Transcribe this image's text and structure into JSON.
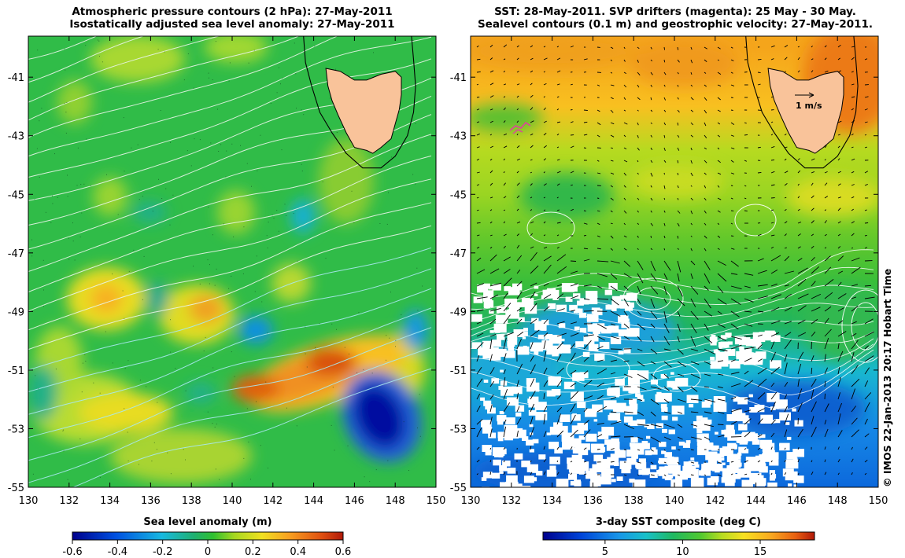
{
  "left_panel": {
    "title_line1": "Atmospheric pressure contours (2 hPa): 27-May-2011",
    "title_line2": "Isostatically adjusted sea level anomaly: 27-May-2011",
    "colorbar_label": "Sea level anomaly (m)",
    "colorbar_ticks": [
      "-0.6",
      "-0.4",
      "-0.2",
      "0",
      "0.2",
      "0.4",
      "0.6"
    ]
  },
  "right_panel": {
    "title_line1": "SST: 28-May-2011. SVP drifters (magenta): 25 May - 30 May.",
    "title_line2": "Sealevel contours (0.1 m) and geostrophic velocity: 27-May-2011.",
    "colorbar_label": "3-day SST composite (deg C)",
    "colorbar_ticks": [
      "5",
      "10",
      "15"
    ],
    "velocity_scale_label": "1 m/s"
  },
  "copyright": "© IMOS 22-Jan-2013 20:17 Hobart Time",
  "colors": {
    "land": "#f9c39a",
    "ocean_low": "#00008c",
    "ocean_mid": "#22b84a",
    "ocean_high": "#c62a0a",
    "drifter": "#e040a0"
  },
  "chart_data": [
    {
      "type": "heatmap",
      "title": "Atmospheric pressure contours (2 hPa): 27-May-2011 / Isostatically adjusted sea level anomaly: 27-May-2011",
      "xlabel": "",
      "ylabel": "",
      "x_ticks": [
        130,
        132,
        134,
        136,
        138,
        140,
        142,
        144,
        146,
        148,
        150
      ],
      "y_ticks": [
        -41,
        -43,
        -45,
        -47,
        -49,
        -51,
        -53,
        -55
      ],
      "xlim": [
        130,
        150
      ],
      "ylim": [
        -55,
        -39.6
      ],
      "colorbar": {
        "label": "Sea level anomaly (m)",
        "range": [
          -0.6,
          0.6
        ],
        "ticks": [
          -0.6,
          -0.4,
          -0.2,
          0,
          0.2,
          0.4,
          0.6
        ]
      },
      "features": [
        {
          "type": "positive_anomaly",
          "lon": 144.5,
          "lat": -51.1,
          "value": 0.5
        },
        {
          "type": "positive_anomaly",
          "lon": 141.5,
          "lat": -51.7,
          "value": 0.45
        },
        {
          "type": "positive_anomaly",
          "lon": 138.8,
          "lat": -49.1,
          "value": 0.45
        },
        {
          "type": "positive_anomaly",
          "lon": 134.0,
          "lat": -48.9,
          "value": 0.3
        },
        {
          "type": "positive_anomaly",
          "lon": 135.5,
          "lat": -52.6,
          "value": 0.3
        },
        {
          "type": "negative_anomaly",
          "lon": 147.5,
          "lat": -52.3,
          "value": -0.55
        },
        {
          "type": "negative_anomaly",
          "lon": 140.8,
          "lat": -49.8,
          "value": -0.3
        },
        {
          "type": "negative_anomaly",
          "lon": 149.0,
          "lat": -49.8,
          "value": -0.3
        },
        {
          "type": "negative_anomaly",
          "lon": 143.5,
          "lat": -46.5,
          "value": -0.2
        }
      ]
    },
    {
      "type": "heatmap",
      "title": "SST: 28-May-2011. SVP drifters (magenta): 25 May - 30 May. / Sealevel contours (0.1 m) and geostrophic velocity: 27-May-2011.",
      "xlabel": "",
      "ylabel": "",
      "x_ticks": [
        130,
        132,
        134,
        136,
        138,
        140,
        142,
        144,
        146,
        148,
        150
      ],
      "y_ticks": [
        -41,
        -43,
        -45,
        -47,
        -49,
        -51,
        -53,
        -55
      ],
      "xlim": [
        130,
        150
      ],
      "ylim": [
        -55,
        -39.6
      ],
      "colorbar": {
        "label": "3-day SST composite (deg C)",
        "range": [
          1,
          18.5
        ],
        "ticks": [
          5,
          10,
          15
        ]
      },
      "sst_profile": [
        {
          "lat": -40,
          "value": 14.5
        },
        {
          "lat": -42,
          "value": 13.5
        },
        {
          "lat": -43.5,
          "value": 11.2
        },
        {
          "lat": -45,
          "value": 10.8
        },
        {
          "lat": -46.5,
          "value": 10.0
        },
        {
          "lat": -48,
          "value": 9.2
        },
        {
          "lat": -49.5,
          "value": 8.0
        },
        {
          "lat": -51,
          "value": 6.5
        },
        {
          "lat": -53,
          "value": 4.8
        },
        {
          "lat": -55,
          "value": 4.0
        }
      ],
      "velocity_scale": "1 m/s"
    }
  ]
}
